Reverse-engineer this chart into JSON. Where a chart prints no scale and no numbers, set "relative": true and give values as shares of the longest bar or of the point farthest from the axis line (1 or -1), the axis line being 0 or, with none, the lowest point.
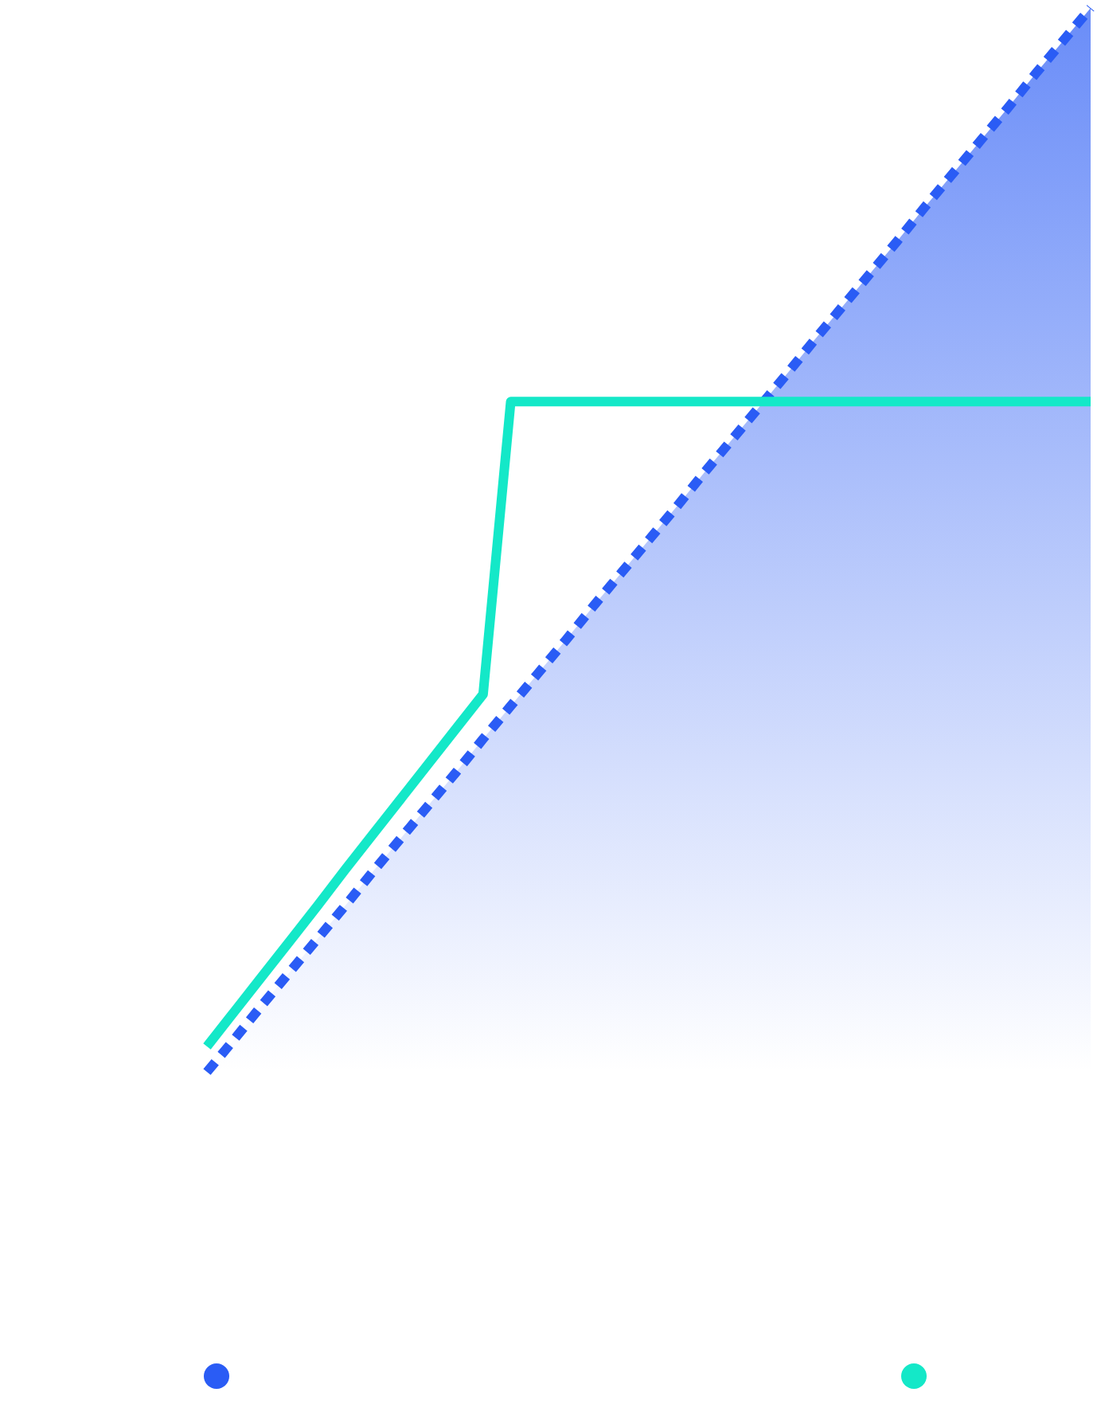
{
  "chart_data": {
    "type": "line",
    "relative": true,
    "grid": false,
    "categories": [
      null,
      null,
      null,
      null,
      null,
      null,
      null,
      null,
      null,
      null,
      null,
      null,
      null,
      null,
      null,
      null,
      null,
      null,
      null,
      null,
      null,
      null,
      null,
      null,
      null,
      null,
      null,
      null,
      null,
      null,
      null,
      null,
      null
    ],
    "series": [
      {
        "type": "area",
        "color": "#2a5cf5",
        "line_style": "dashed",
        "values": [
          0,
          0.031,
          0.063,
          0.094,
          0.125,
          0.156,
          0.188,
          0.219,
          0.25,
          0.281,
          0.313,
          0.344,
          0.375,
          0.406,
          0.438,
          0.469,
          0.5,
          0.531,
          0.563,
          0.594,
          0.625,
          0.656,
          0.688,
          0.719,
          0.75,
          0.781,
          0.813,
          0.844,
          0.875,
          0.906,
          0.938,
          0.969,
          1
        ]
      },
      {
        "type": "line",
        "color": "#14e8c8",
        "line_style": "solid",
        "values": [
          0.024,
          0.057,
          0.09,
          0.123,
          0.156,
          0.19,
          0.223,
          0.256,
          0.289,
          0.322,
          0.355,
          0.63,
          0.63,
          0.63,
          0.63,
          0.63,
          0.63,
          0.63,
          0.63,
          0.63,
          0.63,
          0.63,
          0.63,
          0.63,
          0.63,
          0.63,
          0.63,
          0.63,
          0.63,
          0.63,
          0.63,
          0.63,
          0.63
        ]
      }
    ]
  }
}
